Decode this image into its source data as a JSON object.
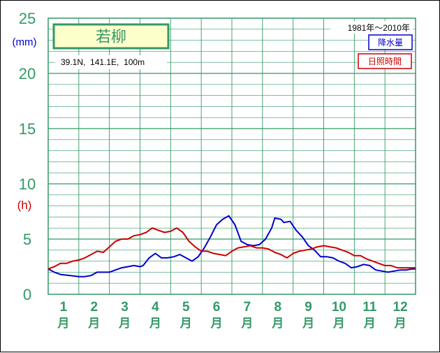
{
  "chart_data": {
    "type": "line",
    "station_name": "若柳",
    "location": "39.1N,  141.1E,  100m",
    "period": "1981年〜2010年",
    "y_units": {
      "precipitation": "(mm)",
      "sunshine": "(h)"
    },
    "y_ticks": [
      "0",
      "5",
      "10",
      "15",
      "20",
      "25"
    ],
    "ylim": [
      0,
      25
    ],
    "month_numbers": [
      "1",
      "2",
      "3",
      "4",
      "5",
      "6",
      "7",
      "8",
      "9",
      "10",
      "11",
      "12"
    ],
    "month_char": "月",
    "x_range": [
      0.5,
      12.5
    ],
    "grid": true,
    "legend_position": "top-right",
    "series": [
      {
        "name": "降水量",
        "color": "#0000cc",
        "points": [
          [
            0.5,
            2.3
          ],
          [
            0.7,
            2.0
          ],
          [
            0.9,
            1.8
          ],
          [
            1.2,
            1.7
          ],
          [
            1.5,
            1.6
          ],
          [
            1.7,
            1.6
          ],
          [
            1.9,
            1.7
          ],
          [
            2.1,
            2.0
          ],
          [
            2.3,
            2.0
          ],
          [
            2.5,
            2.0
          ],
          [
            2.7,
            2.2
          ],
          [
            2.9,
            2.4
          ],
          [
            3.1,
            2.5
          ],
          [
            3.3,
            2.6
          ],
          [
            3.5,
            2.5
          ],
          [
            3.6,
            2.6
          ],
          [
            3.8,
            3.3
          ],
          [
            4.0,
            3.7
          ],
          [
            4.2,
            3.3
          ],
          [
            4.4,
            3.3
          ],
          [
            4.6,
            3.4
          ],
          [
            4.8,
            3.6
          ],
          [
            5.0,
            3.3
          ],
          [
            5.2,
            3.0
          ],
          [
            5.4,
            3.4
          ],
          [
            5.6,
            4.2
          ],
          [
            5.8,
            5.2
          ],
          [
            6.0,
            6.3
          ],
          [
            6.2,
            6.8
          ],
          [
            6.4,
            7.1
          ],
          [
            6.6,
            6.3
          ],
          [
            6.8,
            4.8
          ],
          [
            7.0,
            4.5
          ],
          [
            7.2,
            4.4
          ],
          [
            7.4,
            4.5
          ],
          [
            7.6,
            5.0
          ],
          [
            7.8,
            6.0
          ],
          [
            7.9,
            6.9
          ],
          [
            8.1,
            6.8
          ],
          [
            8.2,
            6.5
          ],
          [
            8.4,
            6.6
          ],
          [
            8.6,
            5.8
          ],
          [
            8.8,
            5.2
          ],
          [
            9.0,
            4.4
          ],
          [
            9.2,
            4.0
          ],
          [
            9.4,
            3.4
          ],
          [
            9.6,
            3.4
          ],
          [
            9.8,
            3.3
          ],
          [
            10.0,
            3.0
          ],
          [
            10.2,
            2.8
          ],
          [
            10.4,
            2.4
          ],
          [
            10.6,
            2.5
          ],
          [
            10.8,
            2.7
          ],
          [
            11.0,
            2.6
          ],
          [
            11.2,
            2.2
          ],
          [
            11.4,
            2.1
          ],
          [
            11.6,
            2.0
          ],
          [
            11.8,
            2.1
          ],
          [
            12.0,
            2.2
          ],
          [
            12.2,
            2.2
          ],
          [
            12.4,
            2.3
          ],
          [
            12.5,
            2.3
          ]
        ]
      },
      {
        "name": "日照時間",
        "color": "#cc0000",
        "points": [
          [
            0.5,
            2.3
          ],
          [
            0.7,
            2.5
          ],
          [
            0.9,
            2.8
          ],
          [
            1.1,
            2.8
          ],
          [
            1.3,
            3.0
          ],
          [
            1.5,
            3.1
          ],
          [
            1.7,
            3.3
          ],
          [
            1.9,
            3.6
          ],
          [
            2.1,
            3.9
          ],
          [
            2.3,
            3.8
          ],
          [
            2.5,
            4.3
          ],
          [
            2.7,
            4.8
          ],
          [
            2.9,
            5.0
          ],
          [
            3.1,
            5.0
          ],
          [
            3.3,
            5.3
          ],
          [
            3.5,
            5.4
          ],
          [
            3.7,
            5.6
          ],
          [
            3.9,
            6.0
          ],
          [
            4.1,
            5.8
          ],
          [
            4.3,
            5.6
          ],
          [
            4.5,
            5.7
          ],
          [
            4.7,
            6.0
          ],
          [
            4.9,
            5.6
          ],
          [
            5.1,
            4.8
          ],
          [
            5.3,
            4.3
          ],
          [
            5.5,
            3.9
          ],
          [
            5.7,
            3.9
          ],
          [
            5.9,
            3.7
          ],
          [
            6.1,
            3.6
          ],
          [
            6.3,
            3.5
          ],
          [
            6.5,
            3.9
          ],
          [
            6.7,
            4.2
          ],
          [
            6.9,
            4.3
          ],
          [
            7.1,
            4.4
          ],
          [
            7.3,
            4.2
          ],
          [
            7.5,
            4.2
          ],
          [
            7.7,
            4.1
          ],
          [
            7.9,
            3.8
          ],
          [
            8.1,
            3.6
          ],
          [
            8.3,
            3.3
          ],
          [
            8.5,
            3.7
          ],
          [
            8.7,
            3.9
          ],
          [
            8.9,
            4.0
          ],
          [
            9.1,
            4.1
          ],
          [
            9.3,
            4.3
          ],
          [
            9.5,
            4.4
          ],
          [
            9.7,
            4.3
          ],
          [
            9.9,
            4.2
          ],
          [
            10.1,
            4.0
          ],
          [
            10.3,
            3.8
          ],
          [
            10.5,
            3.5
          ],
          [
            10.7,
            3.5
          ],
          [
            10.9,
            3.2
          ],
          [
            11.1,
            3.0
          ],
          [
            11.3,
            2.8
          ],
          [
            11.5,
            2.6
          ],
          [
            11.7,
            2.6
          ],
          [
            11.9,
            2.4
          ],
          [
            12.1,
            2.4
          ],
          [
            12.3,
            2.4
          ],
          [
            12.5,
            2.4
          ]
        ]
      }
    ]
  }
}
